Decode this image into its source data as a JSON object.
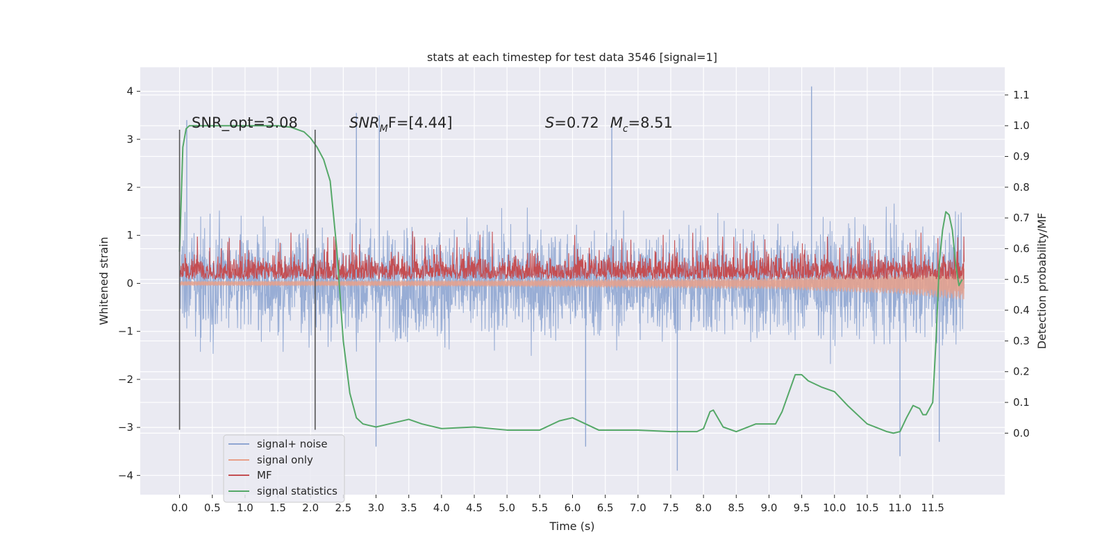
{
  "chart_data": {
    "type": "line",
    "title": "stats at each timestep for test data 3546 [signal=1]",
    "xlabel": "Time (s)",
    "ylabel_left": "Whitened strain",
    "ylabel_right": "Detection probability/MF",
    "xlim": [
      -0.6,
      12.6
    ],
    "ylim_left": [
      -4.4,
      4.5
    ],
    "ylim_right": [
      -0.2,
      1.19
    ],
    "x_ticks": [
      0.0,
      0.5,
      1.0,
      1.5,
      2.0,
      2.5,
      3.0,
      3.5,
      4.0,
      4.5,
      5.0,
      5.5,
      6.0,
      6.5,
      7.0,
      7.5,
      8.0,
      8.5,
      9.0,
      9.5,
      10.0,
      10.5,
      11.0,
      11.5
    ],
    "x_tick_labels": [
      "0.0",
      "0.5",
      "1.0",
      "1.5",
      "2.0",
      "2.5",
      "3.0",
      "3.5",
      "4.0",
      "4.5",
      "5.0",
      "5.5",
      "6.0",
      "6.5",
      "7.0",
      "7.5",
      "8.0",
      "8.5",
      "9.0",
      "9.5",
      "10.0",
      "10.5",
      "11.0",
      "11.5"
    ],
    "y_left_ticks": [
      -4,
      -3,
      -2,
      -1,
      0,
      1,
      2,
      3,
      4
    ],
    "y_left_tick_labels": [
      "−4",
      "−3",
      "−2",
      "−1",
      "0",
      "1",
      "2",
      "3",
      "4"
    ],
    "y_right_ticks": [
      0.0,
      0.1,
      0.2,
      0.3,
      0.4,
      0.5,
      0.6,
      0.7,
      0.8,
      0.9,
      1.0,
      1.1
    ],
    "y_right_tick_labels": [
      "0.0",
      "0.1",
      "0.2",
      "0.3",
      "0.4",
      "0.5",
      "0.6",
      "0.7",
      "0.8",
      "0.9",
      "1.0",
      "1.1"
    ],
    "grid": true,
    "legend_placement": "lower-left",
    "annotations": {
      "snr_opt": "SNR_opt=3.08",
      "snr_mf": {
        "base": "SNR",
        "sub": "M",
        "rest": "F=[4.44]"
      },
      "s_mc": {
        "s_var": "S",
        "s_rest": "=0.72",
        "mc_base": "M",
        "mc_sub": "c",
        "mc_rest": "=8.51"
      }
    },
    "vertical_markers": {
      "x": [
        0.0,
        2.07
      ],
      "y_range": [
        -3.05,
        3.2
      ]
    },
    "signal_noise": {
      "description": "noise band",
      "duration": 12.0,
      "typical_range": [
        -2.0,
        2.0
      ],
      "peak_positive": [
        [
          0.11,
          3.4
        ],
        [
          2.7,
          3.55
        ],
        [
          9.65,
          4.1
        ],
        [
          6.6,
          3.3
        ],
        [
          3.05,
          3.5
        ]
      ],
      "peak_negative": [
        [
          7.6,
          -3.9
        ],
        [
          11.0,
          -3.6
        ],
        [
          3.0,
          -3.4
        ],
        [
          11.6,
          -3.3
        ],
        [
          6.2,
          -3.4
        ]
      ]
    },
    "series": [
      {
        "name": "signal+ noise",
        "color": "#8fa6d1",
        "axis": "left",
        "generated": true,
        "x_range": [
          0.0,
          11.98
        ],
        "envelope": [
          -2.0,
          2.0
        ]
      },
      {
        "name": "signal only",
        "color": "#e8a08a",
        "axis": "left",
        "generated": true,
        "x_range": [
          0.0,
          11.98
        ],
        "envelope_growth": [
          [
            0.0,
            0.05
          ],
          [
            5.0,
            0.07
          ],
          [
            9.0,
            0.12
          ],
          [
            11.0,
            0.22
          ],
          [
            11.98,
            0.35
          ]
        ]
      },
      {
        "name": "MF",
        "color": "#c44e52",
        "axis": "right",
        "generated": true,
        "x_range": [
          0.0,
          11.98
        ],
        "base": 0.5,
        "typical_max": 0.61,
        "peak_max": 0.66
      },
      {
        "name": "signal statistics",
        "color": "#55a868",
        "axis": "right",
        "x": [
          0.0,
          0.05,
          0.1,
          0.15,
          0.2,
          0.3,
          0.5,
          1.0,
          1.5,
          1.7,
          1.9,
          2.0,
          2.1,
          2.2,
          2.3,
          2.4,
          2.5,
          2.6,
          2.7,
          2.8,
          2.9,
          3.0,
          3.2,
          3.5,
          3.7,
          4.0,
          4.5,
          5.0,
          5.5,
          5.8,
          6.0,
          6.2,
          6.4,
          7.0,
          7.5,
          7.9,
          8.0,
          8.1,
          8.15,
          8.3,
          8.5,
          8.8,
          8.9,
          9.1,
          9.2,
          9.3,
          9.4,
          9.5,
          9.6,
          9.8,
          10.0,
          10.2,
          10.5,
          10.8,
          10.9,
          11.0,
          11.1,
          11.2,
          11.3,
          11.35,
          11.4,
          11.5,
          11.55,
          11.6,
          11.65,
          11.7,
          11.75,
          11.8,
          11.85,
          11.9,
          11.95
        ],
        "y": [
          0.59,
          0.93,
          0.99,
          1.0,
          1.0,
          1.0,
          1.0,
          1.0,
          1.0,
          0.995,
          0.98,
          0.96,
          0.93,
          0.89,
          0.82,
          0.6,
          0.3,
          0.13,
          0.05,
          0.03,
          0.025,
          0.02,
          0.03,
          0.045,
          0.03,
          0.015,
          0.02,
          0.01,
          0.01,
          0.04,
          0.05,
          0.03,
          0.01,
          0.01,
          0.005,
          0.005,
          0.015,
          0.07,
          0.075,
          0.02,
          0.005,
          0.03,
          0.03,
          0.03,
          0.07,
          0.13,
          0.19,
          0.19,
          0.17,
          0.15,
          0.135,
          0.09,
          0.03,
          0.005,
          0.0,
          0.005,
          0.05,
          0.09,
          0.08,
          0.06,
          0.06,
          0.1,
          0.3,
          0.55,
          0.66,
          0.72,
          0.71,
          0.66,
          0.55,
          0.48,
          0.5
        ]
      }
    ]
  }
}
